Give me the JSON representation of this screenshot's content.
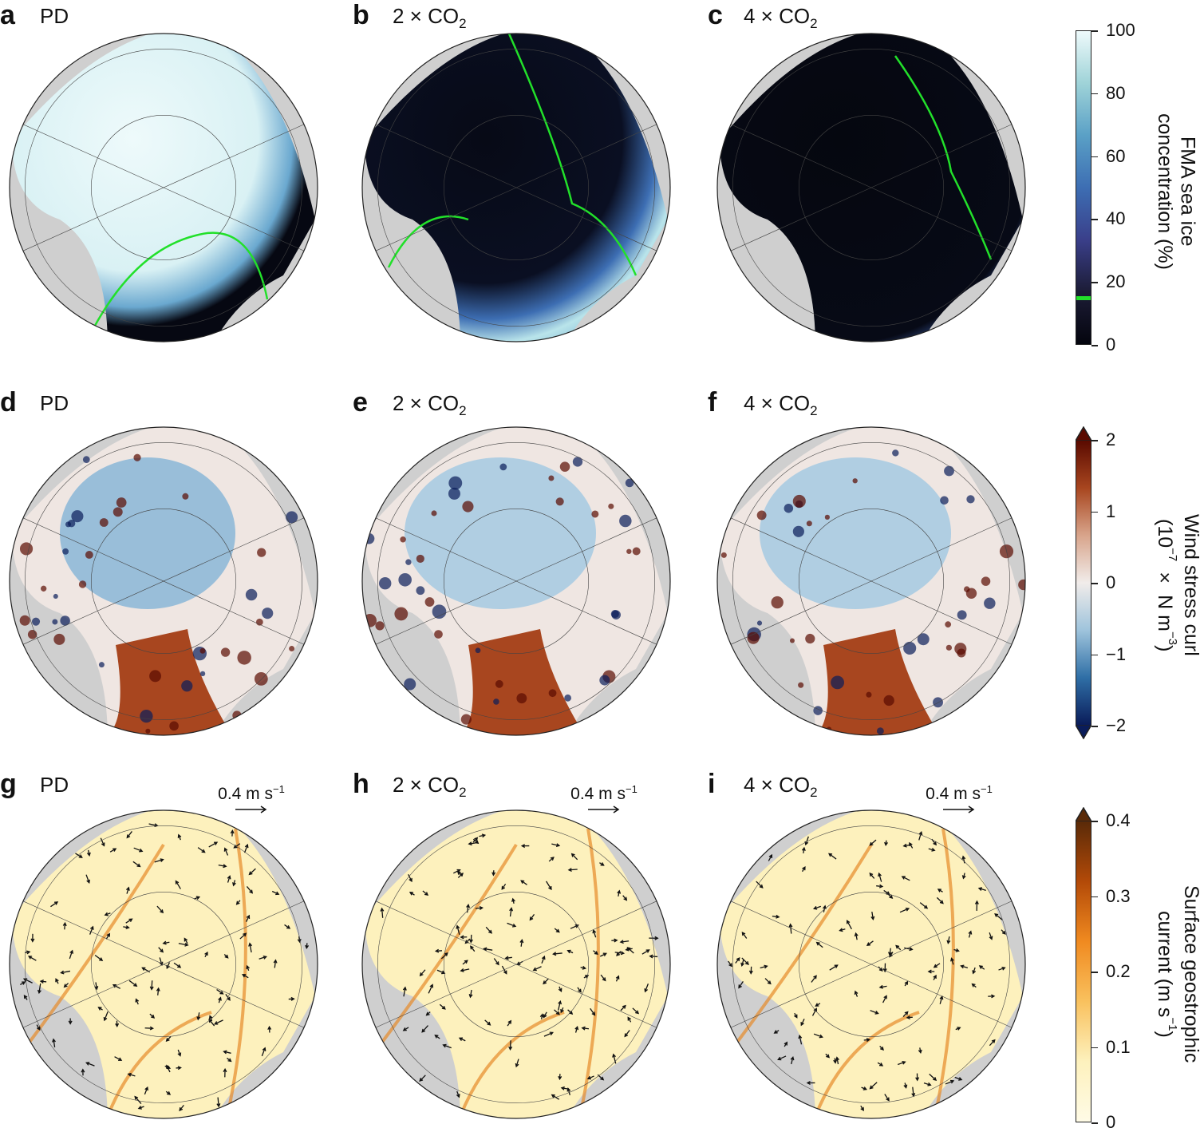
{
  "panels": [
    {
      "id": "a",
      "label": "a",
      "title": "PD",
      "sub": "",
      "row": 0,
      "col": 0,
      "field": "ice",
      "variant": "pd"
    },
    {
      "id": "b",
      "label": "b",
      "title": "2 × CO",
      "sub": "2",
      "row": 0,
      "col": 1,
      "field": "ice",
      "variant": "x2"
    },
    {
      "id": "c",
      "label": "c",
      "title": "4 × CO",
      "sub": "2",
      "row": 0,
      "col": 2,
      "field": "ice",
      "variant": "x4"
    },
    {
      "id": "d",
      "label": "d",
      "title": "PD",
      "sub": "",
      "row": 1,
      "col": 0,
      "field": "curl",
      "variant": "pd"
    },
    {
      "id": "e",
      "label": "e",
      "title": "2 × CO",
      "sub": "2",
      "row": 1,
      "col": 1,
      "field": "curl",
      "variant": "x2"
    },
    {
      "id": "f",
      "label": "f",
      "title": "4 × CO",
      "sub": "2",
      "row": 1,
      "col": 2,
      "field": "curl",
      "variant": "x4"
    },
    {
      "id": "g",
      "label": "g",
      "title": "PD",
      "sub": "",
      "row": 2,
      "col": 0,
      "field": "current",
      "variant": "pd",
      "scale": "0.4 m s",
      "scale_sup": "−1"
    },
    {
      "id": "h",
      "label": "h",
      "title": "2 × CO",
      "sub": "2",
      "row": 2,
      "col": 1,
      "field": "current",
      "variant": "x2",
      "scale": "0.4 m s",
      "scale_sup": "−1"
    },
    {
      "id": "i",
      "label": "i",
      "title": "4 × CO",
      "sub": "2",
      "row": 2,
      "col": 2,
      "field": "current",
      "variant": "x4",
      "scale": "0.4 m s",
      "scale_sup": "−1"
    }
  ],
  "colorbars": [
    {
      "id": "ice",
      "ticks": [
        "100",
        "80",
        "60",
        "40",
        "20",
        "0"
      ],
      "range": [
        0,
        100
      ],
      "extend": "none",
      "marker_value": 15,
      "marker_color": "#22e02a",
      "label_lines": [
        "FMA sea ice",
        "concentration (%)"
      ],
      "colors": [
        "#04050e",
        "#1c1c36",
        "#3a3f8a",
        "#3d6eb3",
        "#5aa0c6",
        "#9fd3d8",
        "#eefafb"
      ]
    },
    {
      "id": "curl",
      "ticks": [
        "2",
        "1",
        "0",
        "−1",
        "−2"
      ],
      "range": [
        -2,
        2
      ],
      "extend": "both",
      "label_line1": "Wind stress curl",
      "label_pre": "(10",
      "label_sup1": "−7",
      "label_mid": " × N m",
      "label_sup2": "−3",
      "label_post": ")",
      "colors": [
        "#5a0a00",
        "#a8461f",
        "#d8a48b",
        "#f1ecea",
        "#9fc4dc",
        "#2f6fa6",
        "#0a1c5a"
      ]
    },
    {
      "id": "current",
      "ticks": [
        "0.4",
        "0.3",
        "0.2",
        "0.1",
        "0"
      ],
      "range": [
        0,
        0.4
      ],
      "extend": "max",
      "label_line1": "Surface geostrophic",
      "label_pre": "current (m s",
      "label_sup": "−1",
      "label_post": ")",
      "colors": [
        "#5a2a08",
        "#b34a08",
        "#f08a20",
        "#f9c15e",
        "#fdf1bd",
        "#fffbe6"
      ]
    }
  ],
  "colors": {
    "land": "#cfcfcf",
    "ice_edge": "#22e02a",
    "ocean_open": "#060812",
    "ice_full": "#e6f6f8"
  }
}
